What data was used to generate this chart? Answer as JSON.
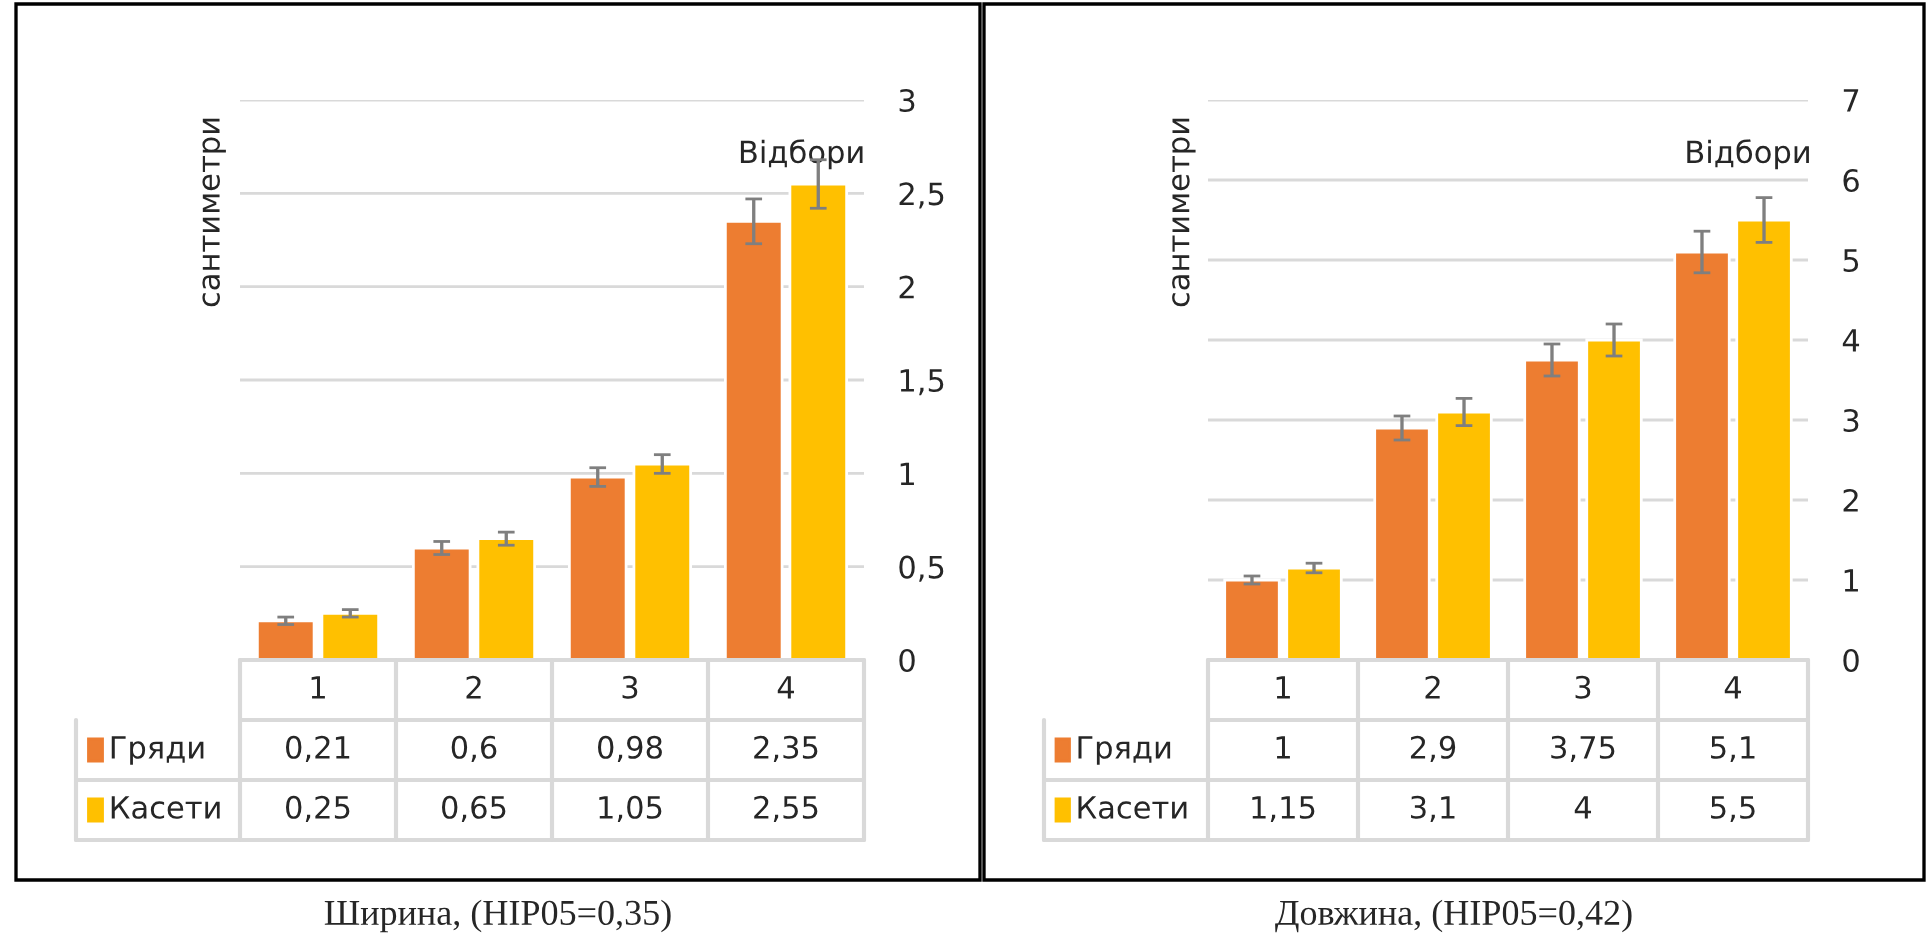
{
  "chart_data": [
    {
      "type": "bar",
      "title": "Ширина, (НІР05=0,35)",
      "xlabel": "Відбори",
      "ylabel": "сантиметри",
      "categories": [
        "1",
        "2",
        "3",
        "4"
      ],
      "series": [
        {
          "name": "Гряди",
          "color": "#ed7d31",
          "values": [
            0.21,
            0.6,
            0.98,
            2.35
          ],
          "errors": [
            0.02,
            0.035,
            0.05,
            0.12
          ],
          "value_labels": [
            "0,21",
            "0,6",
            "0,98",
            "2,35"
          ]
        },
        {
          "name": "Касети",
          "color": "#ffc000",
          "values": [
            0.25,
            0.65,
            1.05,
            2.55
          ],
          "errors": [
            0.02,
            0.035,
            0.05,
            0.13
          ],
          "value_labels": [
            "0,25",
            "0,65",
            "1,05",
            "2,55"
          ]
        }
      ],
      "ylim": [
        0,
        3
      ],
      "yticks": [
        0,
        {
          "value": 0.5,
          "label": "0,5"
        },
        1,
        {
          "value": 1.5,
          "label": "1,5"
        },
        2,
        {
          "value": 2.5,
          "label": "2,5"
        },
        3
      ],
      "grid": "y",
      "legend": "bottom"
    },
    {
      "type": "bar",
      "title": "Довжина, (НІР05=0,42)",
      "xlabel": "Відбори",
      "ylabel": "сантиметри",
      "categories": [
        "1",
        "2",
        "3",
        "4"
      ],
      "series": [
        {
          "name": "Гряди",
          "color": "#ed7d31",
          "values": [
            1,
            2.9,
            3.75,
            5.1
          ],
          "errors": [
            0.05,
            0.15,
            0.2,
            0.26
          ],
          "value_labels": [
            "1",
            "2,9",
            "3,75",
            "5,1"
          ]
        },
        {
          "name": "Касети",
          "color": "#ffc000",
          "values": [
            1.15,
            3.1,
            4,
            5.5
          ],
          "errors": [
            0.06,
            0.17,
            0.2,
            0.28
          ],
          "value_labels": [
            "1,15",
            "3,1",
            "4",
            "5,5"
          ]
        }
      ],
      "ylim": [
        0,
        7
      ],
      "yticks": [
        0,
        1,
        2,
        3,
        4,
        5,
        6,
        7
      ],
      "grid": "y",
      "legend": "bottom"
    }
  ]
}
